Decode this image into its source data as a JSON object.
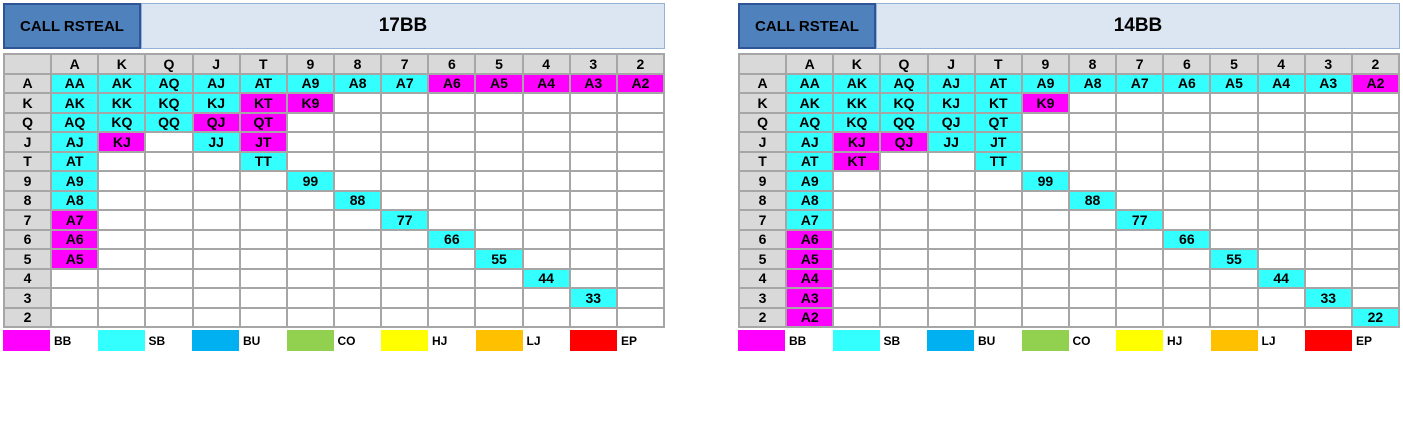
{
  "legend": [
    {
      "key": "BB",
      "color": "#ff00ff"
    },
    {
      "key": "SB",
      "color": "#33ffff"
    },
    {
      "key": "BU",
      "color": "#00b0f0"
    },
    {
      "key": "CO",
      "color": "#92d050"
    },
    {
      "key": "HJ",
      "color": "#ffff00"
    },
    {
      "key": "LJ",
      "color": "#ffc000"
    },
    {
      "key": "EP",
      "color": "#ff0000"
    }
  ],
  "panels": [
    {
      "label": "CALL RSTEAL",
      "title": "17BB",
      "columns": [
        "A",
        "K",
        "Q",
        "J",
        "T",
        "9",
        "8",
        "7",
        "6",
        "5",
        "4",
        "3",
        "2"
      ],
      "rows": [
        "A",
        "K",
        "Q",
        "J",
        "T",
        "9",
        "8",
        "7",
        "6",
        "5",
        "4",
        "3",
        "2"
      ],
      "cells": [
        [
          [
            "AA",
            "SB"
          ],
          [
            "AK",
            "SB"
          ],
          [
            "AQ",
            "SB"
          ],
          [
            "AJ",
            "SB"
          ],
          [
            "AT",
            "SB"
          ],
          [
            "A9",
            "SB"
          ],
          [
            "A8",
            "SB"
          ],
          [
            "A7",
            "SB"
          ],
          [
            "A6",
            "BB"
          ],
          [
            "A5",
            "BB"
          ],
          [
            "A4",
            "BB"
          ],
          [
            "A3",
            "BB"
          ],
          [
            "A2",
            "BB"
          ]
        ],
        [
          [
            "AK",
            "SB"
          ],
          [
            "KK",
            "SB"
          ],
          [
            "KQ",
            "SB"
          ],
          [
            "KJ",
            "SB"
          ],
          [
            "KT",
            "BB"
          ],
          [
            "K9",
            "BB"
          ],
          null,
          null,
          null,
          null,
          null,
          null,
          null
        ],
        [
          [
            "AQ",
            "SB"
          ],
          [
            "KQ",
            "SB"
          ],
          [
            "QQ",
            "SB"
          ],
          [
            "QJ",
            "BB"
          ],
          [
            "QT",
            "BB"
          ],
          null,
          null,
          null,
          null,
          null,
          null,
          null,
          null
        ],
        [
          [
            "AJ",
            "SB"
          ],
          [
            "KJ",
            "BB"
          ],
          null,
          [
            "JJ",
            "SB"
          ],
          [
            "JT",
            "BB"
          ],
          null,
          null,
          null,
          null,
          null,
          null,
          null,
          null
        ],
        [
          [
            "AT",
            "SB"
          ],
          null,
          null,
          null,
          [
            "TT",
            "SB"
          ],
          null,
          null,
          null,
          null,
          null,
          null,
          null,
          null
        ],
        [
          [
            "A9",
            "SB"
          ],
          null,
          null,
          null,
          null,
          [
            "99",
            "SB"
          ],
          null,
          null,
          null,
          null,
          null,
          null,
          null
        ],
        [
          [
            "A8",
            "SB"
          ],
          null,
          null,
          null,
          null,
          null,
          [
            "88",
            "SB"
          ],
          null,
          null,
          null,
          null,
          null,
          null
        ],
        [
          [
            "A7",
            "BB"
          ],
          null,
          null,
          null,
          null,
          null,
          null,
          [
            "77",
            "SB"
          ],
          null,
          null,
          null,
          null,
          null
        ],
        [
          [
            "A6",
            "BB"
          ],
          null,
          null,
          null,
          null,
          null,
          null,
          null,
          [
            "66",
            "SB"
          ],
          null,
          null,
          null,
          null
        ],
        [
          [
            "A5",
            "BB"
          ],
          null,
          null,
          null,
          null,
          null,
          null,
          null,
          null,
          [
            "55",
            "SB"
          ],
          null,
          null,
          null
        ],
        [
          null,
          null,
          null,
          null,
          null,
          null,
          null,
          null,
          null,
          null,
          [
            "44",
            "SB"
          ],
          null,
          null
        ],
        [
          null,
          null,
          null,
          null,
          null,
          null,
          null,
          null,
          null,
          null,
          null,
          [
            "33",
            "SB"
          ],
          null
        ],
        [
          null,
          null,
          null,
          null,
          null,
          null,
          null,
          null,
          null,
          null,
          null,
          null,
          null
        ]
      ]
    },
    {
      "label": "CALL RSTEAL",
      "title": "14BB",
      "columns": [
        "A",
        "K",
        "Q",
        "J",
        "T",
        "9",
        "8",
        "7",
        "6",
        "5",
        "4",
        "3",
        "2"
      ],
      "rows": [
        "A",
        "K",
        "Q",
        "J",
        "T",
        "9",
        "8",
        "7",
        "6",
        "5",
        "4",
        "3",
        "2"
      ],
      "cells": [
        [
          [
            "AA",
            "SB"
          ],
          [
            "AK",
            "SB"
          ],
          [
            "AQ",
            "SB"
          ],
          [
            "AJ",
            "SB"
          ],
          [
            "AT",
            "SB"
          ],
          [
            "A9",
            "SB"
          ],
          [
            "A8",
            "SB"
          ],
          [
            "A7",
            "SB"
          ],
          [
            "A6",
            "SB"
          ],
          [
            "A5",
            "SB"
          ],
          [
            "A4",
            "SB"
          ],
          [
            "A3",
            "SB"
          ],
          [
            "A2",
            "BB"
          ]
        ],
        [
          [
            "AK",
            "SB"
          ],
          [
            "KK",
            "SB"
          ],
          [
            "KQ",
            "SB"
          ],
          [
            "KJ",
            "SB"
          ],
          [
            "KT",
            "SB"
          ],
          [
            "K9",
            "BB"
          ],
          null,
          null,
          null,
          null,
          null,
          null,
          null
        ],
        [
          [
            "AQ",
            "SB"
          ],
          [
            "KQ",
            "SB"
          ],
          [
            "QQ",
            "SB"
          ],
          [
            "QJ",
            "SB"
          ],
          [
            "QT",
            "SB"
          ],
          null,
          null,
          null,
          null,
          null,
          null,
          null,
          null
        ],
        [
          [
            "AJ",
            "SB"
          ],
          [
            "KJ",
            "BB"
          ],
          [
            "QJ",
            "BB"
          ],
          [
            "JJ",
            "SB"
          ],
          [
            "JT",
            "SB"
          ],
          null,
          null,
          null,
          null,
          null,
          null,
          null,
          null
        ],
        [
          [
            "AT",
            "SB"
          ],
          [
            "KT",
            "BB"
          ],
          null,
          null,
          [
            "TT",
            "SB"
          ],
          null,
          null,
          null,
          null,
          null,
          null,
          null,
          null
        ],
        [
          [
            "A9",
            "SB"
          ],
          null,
          null,
          null,
          null,
          [
            "99",
            "SB"
          ],
          null,
          null,
          null,
          null,
          null,
          null,
          null
        ],
        [
          [
            "A8",
            "SB"
          ],
          null,
          null,
          null,
          null,
          null,
          [
            "88",
            "SB"
          ],
          null,
          null,
          null,
          null,
          null,
          null
        ],
        [
          [
            "A7",
            "SB"
          ],
          null,
          null,
          null,
          null,
          null,
          null,
          [
            "77",
            "SB"
          ],
          null,
          null,
          null,
          null,
          null
        ],
        [
          [
            "A6",
            "BB"
          ],
          null,
          null,
          null,
          null,
          null,
          null,
          null,
          [
            "66",
            "SB"
          ],
          null,
          null,
          null,
          null
        ],
        [
          [
            "A5",
            "BB"
          ],
          null,
          null,
          null,
          null,
          null,
          null,
          null,
          null,
          [
            "55",
            "SB"
          ],
          null,
          null,
          null
        ],
        [
          [
            "A4",
            "BB"
          ],
          null,
          null,
          null,
          null,
          null,
          null,
          null,
          null,
          null,
          [
            "44",
            "SB"
          ],
          null,
          null
        ],
        [
          [
            "A3",
            "BB"
          ],
          null,
          null,
          null,
          null,
          null,
          null,
          null,
          null,
          null,
          null,
          [
            "33",
            "SB"
          ],
          null
        ],
        [
          [
            "A2",
            "BB"
          ],
          null,
          null,
          null,
          null,
          null,
          null,
          null,
          null,
          null,
          null,
          null,
          [
            "22",
            "SB"
          ]
        ]
      ]
    }
  ]
}
